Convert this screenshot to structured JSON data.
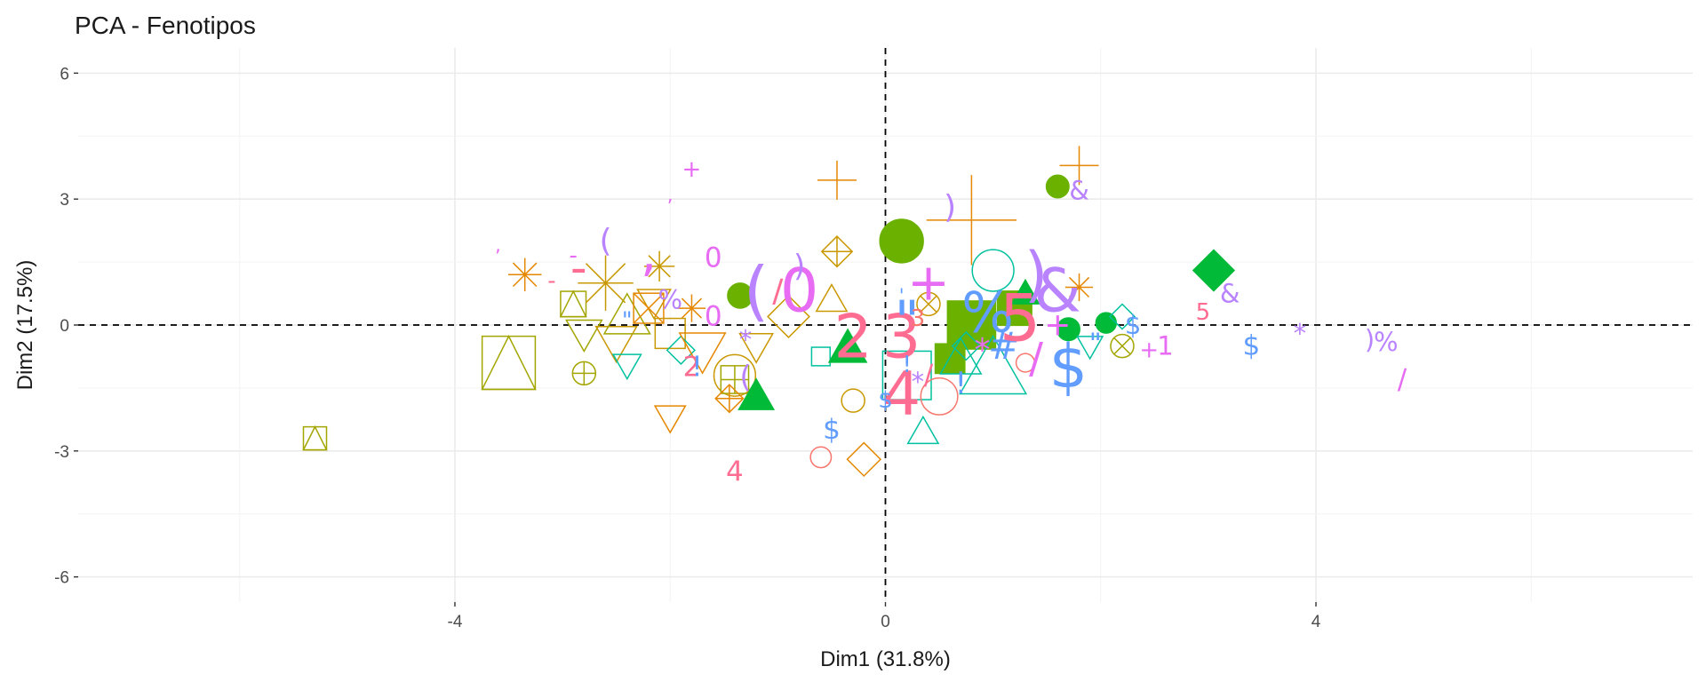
{
  "chart_data": {
    "type": "scatter",
    "title": "PCA - Fenotipos",
    "xlabel": "Dim1 (31.8%)",
    "ylabel": "Dim2 (17.5%)",
    "xlim": [
      -7.5,
      7.5
    ],
    "ylim": [
      -6.6,
      6.6
    ],
    "x_ticks": [
      -4,
      0,
      4
    ],
    "y_ticks": [
      -6,
      -3,
      0,
      3,
      6
    ],
    "grid": true,
    "legend": "none",
    "reference_lines": {
      "x": 0,
      "y": 0
    },
    "colors": {
      "red": "#F8766D",
      "orange": "#E58700",
      "gold": "#C99800",
      "olive": "#A3A500",
      "lime": "#6BB100",
      "green": "#00BA38",
      "teal": "#00C19F",
      "blue": "#619CFF",
      "violet": "#B983FF",
      "magenta": "#E76BF3",
      "pink": "#FF6C91"
    },
    "points": [
      {
        "x": -5.3,
        "y": -2.7,
        "shape": "square-triangle",
        "color": "olive",
        "size": 1.0
      },
      {
        "x": -3.5,
        "y": -0.9,
        "shape": "square-triangle",
        "color": "olive",
        "size": 2.3
      },
      {
        "x": -3.35,
        "y": 1.2,
        "shape": "asterisk",
        "color": "orange",
        "size": 1.2
      },
      {
        "x": -2.9,
        "y": 0.5,
        "shape": "square-triangle",
        "color": "olive",
        "size": 1.1
      },
      {
        "x": -2.8,
        "y": -0.2,
        "shape": "triangle-down",
        "color": "olive",
        "size": 1.4
      },
      {
        "x": -2.6,
        "y": 1.0,
        "shape": "asterisk",
        "color": "gold",
        "size": 2.0
      },
      {
        "x": -2.5,
        "y": -0.4,
        "shape": "triangle-down",
        "color": "gold",
        "size": 1.6
      },
      {
        "x": -2.4,
        "y": 0.2,
        "shape": "triangle-up",
        "color": "olive",
        "size": 1.8
      },
      {
        "x": -2.15,
        "y": 0.55,
        "shape": "triangle-down",
        "color": "gold",
        "size": 1.3
      },
      {
        "x": -2.2,
        "y": 0.4,
        "shape": "square-x",
        "color": "orange",
        "size": 1.3
      },
      {
        "x": -2.0,
        "y": -0.2,
        "shape": "square",
        "color": "gold",
        "size": 1.3
      },
      {
        "x": -2.1,
        "y": 1.4,
        "shape": "asterisk",
        "color": "gold",
        "size": 1.1
      },
      {
        "x": -1.8,
        "y": 0.4,
        "shape": "asterisk",
        "color": "orange",
        "size": 1.0
      },
      {
        "x": -2.8,
        "y": -1.15,
        "shape": "circle-plus",
        "color": "olive",
        "size": 1.0
      },
      {
        "x": -2.4,
        "y": -0.95,
        "shape": "triangle-down",
        "color": "teal",
        "size": 1.1
      },
      {
        "x": -1.9,
        "y": -0.6,
        "shape": "diamond",
        "color": "teal",
        "size": 1.0
      },
      {
        "x": -1.7,
        "y": -0.6,
        "shape": "triangle-down",
        "color": "orange",
        "size": 1.8
      },
      {
        "x": -1.4,
        "y": -1.2,
        "shape": "circle",
        "color": "gold",
        "size": 1.8
      },
      {
        "x": -1.4,
        "y": -1.3,
        "shape": "square-plus",
        "color": "olive",
        "size": 1.2
      },
      {
        "x": -1.45,
        "y": -1.75,
        "shape": "diamond-plus",
        "color": "orange",
        "size": 1.0
      },
      {
        "x": -2.0,
        "y": -2.2,
        "shape": "triangle-down",
        "color": "orange",
        "size": 1.2
      },
      {
        "x": -1.2,
        "y": -0.5,
        "shape": "triangle-down",
        "color": "gold",
        "size": 1.3
      },
      {
        "x": -0.9,
        "y": 0.2,
        "shape": "diamond",
        "color": "gold",
        "size": 1.5
      },
      {
        "x": -0.5,
        "y": 0.6,
        "shape": "triangle-up",
        "color": "gold",
        "size": 1.2
      },
      {
        "x": -0.45,
        "y": 1.75,
        "shape": "diamond-plus",
        "color": "gold",
        "size": 1.1
      },
      {
        "x": -0.45,
        "y": 3.45,
        "shape": "plus",
        "color": "orange",
        "size": 1.3
      },
      {
        "x": -0.6,
        "y": -0.75,
        "shape": "square",
        "color": "teal",
        "size": 0.8
      },
      {
        "x": -0.3,
        "y": -1.8,
        "shape": "circle",
        "color": "gold",
        "size": 1.0
      },
      {
        "x": -0.2,
        "y": -3.2,
        "shape": "diamond",
        "color": "orange",
        "size": 1.2
      },
      {
        "x": -0.6,
        "y": -3.15,
        "shape": "circle",
        "color": "red",
        "size": 0.9
      },
      {
        "x": -1.35,
        "y": 0.7,
        "shape": "circle-filled",
        "color": "lime",
        "size": 1.1
      },
      {
        "x": -1.2,
        "y": -1.7,
        "shape": "triangle-filled",
        "color": "green",
        "size": 1.4
      },
      {
        "x": -0.35,
        "y": -0.55,
        "shape": "triangle-filled",
        "color": "green",
        "size": 1.5
      },
      {
        "x": 0.15,
        "y": 2.0,
        "shape": "circle-filled",
        "color": "lime",
        "size": 1.9
      },
      {
        "x": 0.6,
        "y": -0.8,
        "shape": "square-filled",
        "color": "lime",
        "size": 1.3
      },
      {
        "x": 0.8,
        "y": 0.0,
        "shape": "square-filled",
        "color": "lime",
        "size": 2.1
      },
      {
        "x": 1.2,
        "y": 0.4,
        "shape": "square-filled",
        "color": "lime",
        "size": 1.5
      },
      {
        "x": 1.3,
        "y": 0.75,
        "shape": "triangle-filled",
        "color": "green",
        "size": 1.1
      },
      {
        "x": 0.2,
        "y": -1.2,
        "shape": "square",
        "color": "teal",
        "size": 2.1
      },
      {
        "x": 0.35,
        "y": -2.55,
        "shape": "triangle-up",
        "color": "teal",
        "size": 1.2
      },
      {
        "x": 0.5,
        "y": -1.7,
        "shape": "circle",
        "color": "red",
        "size": 1.6
      },
      {
        "x": 0.7,
        "y": -0.8,
        "shape": "triangle-up",
        "color": "teal",
        "size": 1.6
      },
      {
        "x": 0.75,
        "y": -0.5,
        "shape": "diamond",
        "color": "teal",
        "size": 1.0
      },
      {
        "x": 0.4,
        "y": 0.5,
        "shape": "circle-x",
        "color": "gold",
        "size": 1.0
      },
      {
        "x": 0.8,
        "y": 2.5,
        "shape": "plus",
        "color": "orange",
        "size": 3.0
      },
      {
        "x": 1.0,
        "y": 1.3,
        "shape": "circle",
        "color": "teal",
        "size": 1.8
      },
      {
        "x": 1.0,
        "y": -1.05,
        "shape": "triangle-up",
        "color": "teal",
        "size": 2.6
      },
      {
        "x": 1.3,
        "y": -0.9,
        "shape": "circle",
        "color": "red",
        "size": 0.8
      },
      {
        "x": 1.6,
        "y": 3.3,
        "shape": "circle-filled",
        "color": "lime",
        "size": 1.0
      },
      {
        "x": 1.7,
        "y": -0.1,
        "shape": "circle-filled",
        "color": "green",
        "size": 1.0
      },
      {
        "x": 2.05,
        "y": 0.05,
        "shape": "circle-filled",
        "color": "green",
        "size": 0.9
      },
      {
        "x": 1.8,
        "y": 3.8,
        "shape": "plus",
        "color": "orange",
        "size": 1.3
      },
      {
        "x": 1.8,
        "y": 0.9,
        "shape": "asterisk",
        "color": "orange",
        "size": 1.0
      },
      {
        "x": 1.9,
        "y": -0.5,
        "shape": "triangle-down",
        "color": "teal",
        "size": 1.0
      },
      {
        "x": 2.2,
        "y": 0.2,
        "shape": "diamond",
        "color": "teal",
        "size": 0.9
      },
      {
        "x": 2.2,
        "y": -0.5,
        "shape": "circle-x",
        "color": "olive",
        "size": 1.0
      },
      {
        "x": 3.05,
        "y": 1.3,
        "shape": "diamond-filled",
        "color": "green",
        "size": 1.5
      },
      {
        "x": -1.8,
        "y": 3.7,
        "type": "text",
        "label": "+",
        "color": "magenta",
        "size": 1.0
      },
      {
        "x": -2.0,
        "y": 3.1,
        "type": "text",
        "label": ",",
        "color": "magenta",
        "size": 0.8
      },
      {
        "x": -3.6,
        "y": 1.9,
        "type": "text",
        "label": ",",
        "color": "magenta",
        "size": 0.8
      },
      {
        "x": -2.6,
        "y": 2.0,
        "type": "text",
        "label": "(",
        "color": "violet",
        "size": 1.4
      },
      {
        "x": -2.2,
        "y": 1.7,
        "type": "text",
        "label": ",",
        "color": "magenta",
        "size": 2.2
      },
      {
        "x": -2.9,
        "y": 1.65,
        "type": "text",
        "label": "-",
        "color": "magenta",
        "size": 1.0
      },
      {
        "x": -2.85,
        "y": 1.35,
        "type": "text",
        "label": "-",
        "color": "pink",
        "size": 2.0
      },
      {
        "x": -3.1,
        "y": 1.05,
        "type": "text",
        "label": "-",
        "color": "pink",
        "size": 1.0
      },
      {
        "x": -1.6,
        "y": 1.6,
        "type": "text",
        "label": "0",
        "color": "magenta",
        "size": 1.2
      },
      {
        "x": -1.6,
        "y": 0.2,
        "type": "text",
        "label": "0",
        "color": "magenta",
        "size": 1.2
      },
      {
        "x": -2.0,
        "y": 0.6,
        "type": "text",
        "label": "%",
        "color": "violet",
        "size": 1.1
      },
      {
        "x": -2.4,
        "y": 0.1,
        "type": "text",
        "label": "\"",
        "color": "blue",
        "size": 1.0
      },
      {
        "x": -0.8,
        "y": 0.8,
        "type": "text",
        "label": "0",
        "color": "magenta",
        "size": 2.6
      },
      {
        "x": -1.2,
        "y": 0.8,
        "type": "text",
        "label": "(",
        "color": "violet",
        "size": 2.8
      },
      {
        "x": -1.0,
        "y": 0.8,
        "type": "text",
        "label": "/",
        "color": "pink",
        "size": 1.4
      },
      {
        "x": -0.8,
        "y": 1.4,
        "type": "text",
        "label": ")",
        "color": "violet",
        "size": 1.3
      },
      {
        "x": -1.3,
        "y": -0.35,
        "type": "text",
        "label": "*",
        "color": "violet",
        "size": 1.1
      },
      {
        "x": -1.8,
        "y": -1.0,
        "type": "text",
        "label": "2",
        "color": "pink",
        "size": 1.2
      },
      {
        "x": -1.75,
        "y": -1.0,
        "type": "text",
        "label": "!",
        "color": "blue",
        "size": 1.2
      },
      {
        "x": -1.3,
        "y": -1.25,
        "type": "text",
        "label": "(",
        "color": "violet",
        "size": 1.3
      },
      {
        "x": -1.4,
        "y": -3.5,
        "type": "text",
        "label": "4",
        "color": "pink",
        "size": 1.2
      },
      {
        "x": -0.5,
        "y": -2.5,
        "type": "text",
        "label": "$",
        "color": "blue",
        "size": 1.2
      },
      {
        "x": -0.3,
        "y": -0.3,
        "type": "text",
        "label": "2",
        "color": "pink",
        "size": 2.6
      },
      {
        "x": 0.15,
        "y": -0.3,
        "type": "text",
        "label": "3",
        "color": "pink",
        "size": 2.6
      },
      {
        "x": 0.15,
        "y": -1.65,
        "type": "text",
        "label": "4",
        "color": "pink",
        "size": 2.6
      },
      {
        "x": 0.2,
        "y": 0.1,
        "type": "text",
        "label": "\"",
        "color": "blue",
        "size": 2.4
      },
      {
        "x": 0.15,
        "y": 0.7,
        "type": "text",
        "label": "'",
        "color": "blue",
        "size": 0.8
      },
      {
        "x": 0.3,
        "y": 0.15,
        "type": "text",
        "label": "3",
        "color": "red",
        "size": 1.0
      },
      {
        "x": 0.2,
        "y": -0.95,
        "type": "text",
        "label": "!",
        "color": "blue",
        "size": 1.0
      },
      {
        "x": 0.0,
        "y": -1.8,
        "type": "text",
        "label": "$",
        "color": "blue",
        "size": 1.0
      },
      {
        "x": 0.3,
        "y": -1.35,
        "type": "text",
        "label": "*",
        "color": "violet",
        "size": 1.1
      },
      {
        "x": 0.4,
        "y": -1.2,
        "type": "text",
        "label": "/",
        "color": "pink",
        "size": 1.2
      },
      {
        "x": 0.6,
        "y": 2.8,
        "type": "text",
        "label": ")",
        "color": "violet",
        "size": 1.4
      },
      {
        "x": 0.4,
        "y": 1.0,
        "type": "text",
        "label": "+",
        "color": "magenta",
        "size": 2.2
      },
      {
        "x": 0.7,
        "y": -1.4,
        "type": "text",
        "label": "!",
        "color": "blue",
        "size": 1.3
      },
      {
        "x": 0.95,
        "y": 0.3,
        "type": "text",
        "label": "%",
        "color": "blue",
        "size": 2.4
      },
      {
        "x": 1.1,
        "y": -0.5,
        "type": "text",
        "label": "#",
        "color": "blue",
        "size": 1.6
      },
      {
        "x": 0.9,
        "y": -0.6,
        "type": "text",
        "label": "*",
        "color": "magenta",
        "size": 1.4
      },
      {
        "x": 1.25,
        "y": 0.15,
        "type": "text",
        "label": "5",
        "color": "pink",
        "size": 2.8
      },
      {
        "x": 1.4,
        "y": 1.2,
        "type": "text",
        "label": ")",
        "color": "violet",
        "size": 2.6
      },
      {
        "x": 1.6,
        "y": 0.8,
        "type": "text",
        "label": "&",
        "color": "violet",
        "size": 2.6
      },
      {
        "x": 1.4,
        "y": -0.8,
        "type": "text",
        "label": "/",
        "color": "magenta",
        "size": 1.8
      },
      {
        "x": 1.7,
        "y": -1.0,
        "type": "text",
        "label": "$",
        "color": "blue",
        "size": 2.6
      },
      {
        "x": 1.6,
        "y": 0.0,
        "type": "text",
        "label": "+",
        "color": "magenta",
        "size": 1.4
      },
      {
        "x": 1.8,
        "y": 3.2,
        "type": "text",
        "label": "&",
        "color": "violet",
        "size": 1.1
      },
      {
        "x": 1.95,
        "y": -0.45,
        "type": "text",
        "label": "\"",
        "color": "blue",
        "size": 1.2
      },
      {
        "x": 2.3,
        "y": 0.0,
        "type": "text",
        "label": "$",
        "color": "blue",
        "size": 1.1
      },
      {
        "x": 2.45,
        "y": -0.6,
        "type": "text",
        "label": "+",
        "color": "magenta",
        "size": 1.0
      },
      {
        "x": 2.6,
        "y": -0.5,
        "type": "text",
        "label": "1",
        "color": "magenta",
        "size": 1.1
      },
      {
        "x": 2.95,
        "y": 0.3,
        "type": "text",
        "label": "5",
        "color": "pink",
        "size": 1.0
      },
      {
        "x": 3.2,
        "y": 0.75,
        "type": "text",
        "label": "&",
        "color": "violet",
        "size": 1.1
      },
      {
        "x": 3.4,
        "y": -0.5,
        "type": "text",
        "label": "$",
        "color": "blue",
        "size": 1.2
      },
      {
        "x": 3.85,
        "y": -0.2,
        "type": "text",
        "label": "*",
        "color": "violet",
        "size": 1.1
      },
      {
        "x": 4.5,
        "y": -0.35,
        "type": "text",
        "label": ")",
        "color": "violet",
        "size": 1.1
      },
      {
        "x": 4.65,
        "y": -0.4,
        "type": "text",
        "label": "%",
        "color": "violet",
        "size": 1.1
      },
      {
        "x": 4.8,
        "y": -1.3,
        "type": "text",
        "label": "/",
        "color": "magenta",
        "size": 1.2
      }
    ]
  }
}
